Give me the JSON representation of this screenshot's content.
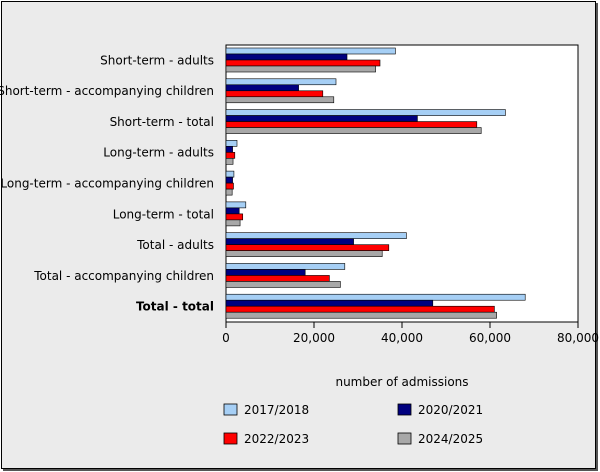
{
  "chart_data": {
    "type": "bar",
    "orientation": "horizontal",
    "categories": [
      "Short-term - adults",
      "Short-term - accompanying children",
      "Short-term - total",
      "Long-term - adults",
      "Long-term - accompanying children",
      "Long-term - total",
      "Total - adults",
      "Total - accompanying children",
      "Total - total"
    ],
    "bold_categories": [
      "Total - total"
    ],
    "series": [
      {
        "name": "2017/2018",
        "color": "#a6cff5",
        "values": [
          38500,
          25000,
          63500,
          2500,
          1800,
          4500,
          41000,
          27000,
          68000
        ]
      },
      {
        "name": "2020/2021",
        "color": "#00007f",
        "values": [
          27500,
          16500,
          43500,
          1500,
          1500,
          3000,
          29000,
          18000,
          47000
        ]
      },
      {
        "name": "2022/2023",
        "color": "#ff0000",
        "values": [
          35000,
          22000,
          57000,
          2000,
          1700,
          3800,
          37000,
          23500,
          61000
        ]
      },
      {
        "name": "2024/2025",
        "color": "#a8a8a8",
        "values": [
          34000,
          24500,
          58000,
          1600,
          1400,
          3200,
          35500,
          26000,
          61500
        ]
      }
    ],
    "xlabel": "number of admissions",
    "ylabel": "",
    "xlim": [
      0,
      80000
    ],
    "x_ticks": [
      0,
      20000,
      40000,
      60000,
      80000
    ],
    "x_tick_labels": [
      "0",
      "20,000",
      "40,000",
      "60,000",
      "80,000"
    ],
    "grid": false,
    "legend_position": "bottom"
  }
}
